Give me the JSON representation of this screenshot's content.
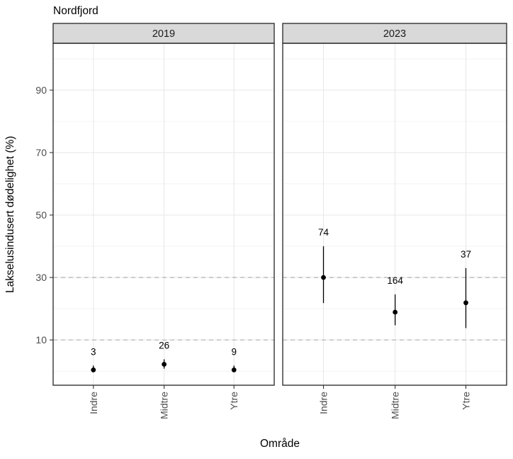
{
  "colors": {
    "strip_bg": "#d9d9d9",
    "panel_border": "#333333",
    "panel_bg": "#ffffff",
    "grid_major": "#e7e7e7",
    "grid_minor": "#f3f3f3",
    "reference_dashed": "#b0b0b0",
    "point": "#000000",
    "axis_text": "#4d4d4d",
    "facet_text": "#1a1a1a"
  },
  "chart_data": {
    "type": "scatter",
    "title": "Nordfjord",
    "xlabel": "Område",
    "ylabel": "Lakselusindusert dødelighet (%)",
    "categories": [
      "Indre",
      "Midtre",
      "Ytre"
    ],
    "y_ticks": [
      10,
      30,
      50,
      70,
      90
    ],
    "y_minor_ticks": [
      0,
      20,
      40,
      60,
      80,
      100
    ],
    "ylim": [
      -4.5,
      105
    ],
    "grid": "major and minor horizontal lines, vertical lines at categories",
    "legend": "none",
    "reference_lines": {
      "values": [
        10,
        30
      ],
      "style": "dashed"
    },
    "facets": [
      {
        "label": "2019",
        "series": [
          {
            "category": "Indre",
            "value": 0.4,
            "ci_low": 0.0,
            "ci_high": 1.8,
            "count_label": "3"
          },
          {
            "category": "Midtre",
            "value": 2.2,
            "ci_low": 0.8,
            "ci_high": 3.8,
            "count_label": "26"
          },
          {
            "category": "Ytre",
            "value": 0.4,
            "ci_low": 0.0,
            "ci_high": 1.8,
            "count_label": "9"
          }
        ]
      },
      {
        "label": "2023",
        "series": [
          {
            "category": "Indre",
            "value": 30.0,
            "ci_low": 21.8,
            "ci_high": 40.0,
            "count_label": "74"
          },
          {
            "category": "Midtre",
            "value": 18.9,
            "ci_low": 14.7,
            "ci_high": 24.6,
            "count_label": "164"
          },
          {
            "category": "Ytre",
            "value": 21.9,
            "ci_low": 13.8,
            "ci_high": 33.0,
            "count_label": "37"
          }
        ]
      }
    ]
  }
}
